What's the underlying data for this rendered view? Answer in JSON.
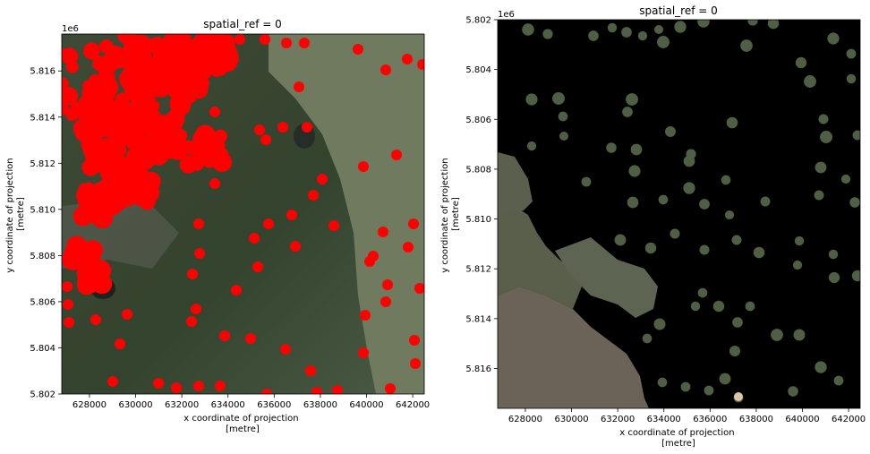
{
  "chart_data": [
    {
      "type": "image",
      "title": "spatial_ref = 0",
      "xlabel": "x coordinate of projection\n[metre]",
      "ylabel": "y coordinate of projection\n[metre]",
      "xlim": [
        626800,
        642500
      ],
      "ylim": [
        5.8176,
        5.802
      ],
      "y_offset_text": "1e6",
      "x_ticks": [
        628000,
        630000,
        632000,
        634000,
        636000,
        638000,
        640000,
        642000
      ],
      "x_tick_labels": [
        "628000",
        "630000",
        "632000",
        "634000",
        "636000",
        "638000",
        "640000",
        "642000"
      ],
      "y_ticks": [
        5.802,
        5.804,
        5.806,
        5.808,
        5.81,
        5.812,
        5.814,
        5.816
      ],
      "y_tick_labels": [
        "5.802",
        "5.804",
        "5.806",
        "5.808",
        "5.810",
        "5.812",
        "5.814",
        "5.816"
      ],
      "y_inverted": true,
      "background": "satellite-image",
      "overlay_color": "#ff0000"
    },
    {
      "type": "image",
      "title": "spatial_ref = 0",
      "xlabel": "x coordinate of projection\n[metre]",
      "ylabel": "y coordinate of projection\n[metre]",
      "xlim": [
        626800,
        642500
      ],
      "ylim": [
        5.802,
        5.8176
      ],
      "y_offset_text": "1e6",
      "x_ticks": [
        628000,
        630000,
        632000,
        634000,
        636000,
        638000,
        640000,
        642000
      ],
      "x_tick_labels": [
        "628000",
        "630000",
        "632000",
        "634000",
        "636000",
        "638000",
        "640000",
        "642000"
      ],
      "y_ticks": [
        5.802,
        5.804,
        5.806,
        5.808,
        5.81,
        5.812,
        5.814,
        5.816
      ],
      "y_tick_labels": [
        "5.802",
        "5.804",
        "5.806",
        "5.808",
        "5.810",
        "5.812",
        "5.814",
        "5.816"
      ],
      "y_inverted": false,
      "background": "#000000",
      "overlay_color": "masked-satellite-patches"
    }
  ]
}
